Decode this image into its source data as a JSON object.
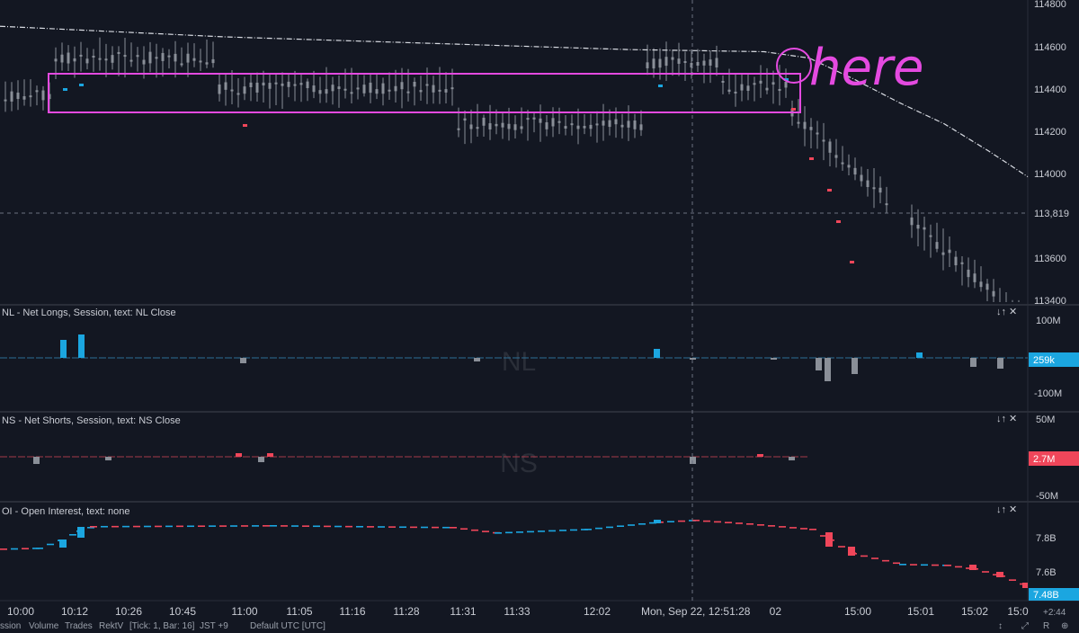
{
  "chart_data": [
    {
      "type": "candlestick",
      "pane": "price",
      "y_ticks": [
        "114800",
        "114600",
        "114400",
        "114200",
        "114000",
        "113819",
        "113600",
        "113400"
      ],
      "ylim": [
        113400,
        114800
      ],
      "current_price_label": "113,819",
      "annotation_text": "here",
      "annotation_box": {
        "x_start": "10:00+",
        "x_end": "14:02+",
        "y_low": 114300,
        "y_high": 114480
      },
      "moving_average_description": "dash-dot white line descending from ~114700 to ~114000"
    },
    {
      "type": "bar",
      "pane": "NL",
      "legend": "NL - Net Longs, Session, text: NL Close",
      "watermark": "NL",
      "y_ticks": [
        "100M",
        "-100M"
      ],
      "value_badge": "259k"
    },
    {
      "type": "bar",
      "pane": "NS",
      "legend": "NS - Net Shorts, Session, text: NS Close",
      "watermark": "NS",
      "y_ticks": [
        "50M",
        "-50M"
      ],
      "value_badge": "2.7M"
    },
    {
      "type": "bar",
      "pane": "OI",
      "legend": "OI - Open Interest, text: none",
      "y_ticks": [
        "7.8B",
        "7.6B"
      ],
      "value_badge": "7.48B"
    }
  ],
  "time_axis": [
    "10:00",
    "10:12",
    "10:26",
    "10:45",
    "11:00",
    "11:05",
    "11:16",
    "11:28",
    "11:31",
    "11:33",
    "12:02",
    "14:02",
    "15:00",
    "15:01",
    "15:02",
    "15:0"
  ],
  "crosshair_time": "Mon, Sep 22, 12:51:28",
  "bottom_bar": {
    "items": [
      "ssion",
      "Volume",
      "Trades",
      "RektV",
      "[Tick: 1, Bar: 16]",
      "JST +9",
      "Default UTC [UTC]"
    ],
    "clock": "+2:44",
    "right_icons": [
      "R"
    ]
  },
  "colors": {
    "bg": "#131722",
    "bull": "#1ba6e0",
    "bear": "#f0465a",
    "neutral": "#8a8f98",
    "annotation": "#e44ae0",
    "badge": "#1ba6e0"
  }
}
